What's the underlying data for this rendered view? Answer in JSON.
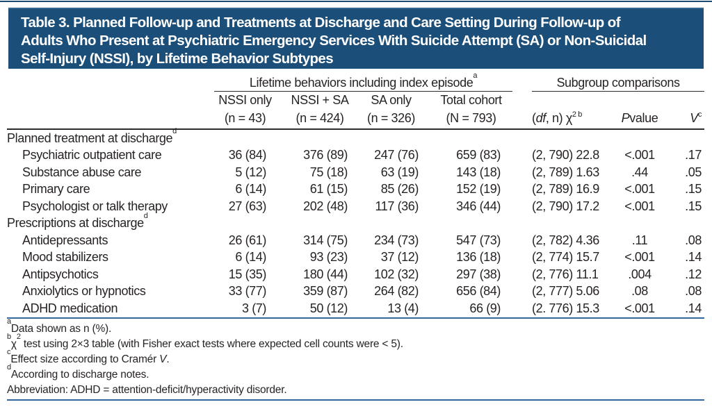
{
  "colors": {
    "title_bar": "#1b4f79",
    "title_text": "#ffffff",
    "body_text": "#272324",
    "dark_rule": "#2b2b2b",
    "blue_rule": "#31679b"
  },
  "title": {
    "lines": [
      "Table 3. Planned Follow-up and Treatments at Discharge and Care Setting During Follow-up of",
      "Adults Who Present at Psychiatric Emergency Services With Suicide Attempt (SA) or Non-Suicidal",
      "Self-Injury (NSSI), by Lifetime Behavior Subtypes"
    ]
  },
  "header": {
    "lifetime_spanner": {
      "text": "Lifetime behaviors including index episode",
      "sup": "a"
    },
    "subgroup_spanner": "Subgroup comparisons",
    "columns": [
      {
        "line1": "NSSI only",
        "line2": "(n = 43)"
      },
      {
        "line1": "NSSI + SA",
        "line2": "(n = 424)"
      },
      {
        "line1": "SA only",
        "line2": "(n = 326)"
      },
      {
        "line1": "Total cohort",
        "line2": "(N = 793)"
      }
    ],
    "chi_header": {
      "open": "(",
      "df": "df",
      "rest": ", n) χ",
      "sup": "2 b"
    },
    "p_header": {
      "italic": "P",
      "rest": " value"
    },
    "v_header": {
      "italic": "V",
      "sup": "c"
    }
  },
  "rows": [
    {
      "type": "section",
      "label": "Planned treatment at discharge",
      "sup": "d"
    },
    {
      "type": "item",
      "label": "Psychiatric outpatient care",
      "values": [
        "36 (84)",
        "376 (89)",
        "247 (76)",
        "659 (83)",
        "(2, 790) 22.8",
        "<.001",
        ".17"
      ]
    },
    {
      "type": "item",
      "label": "Substance abuse care",
      "values": [
        "5 (12)",
        "75 (18)",
        "63 (19)",
        "143 (18)",
        "(2, 789) 1.63",
        ".44",
        ".05"
      ]
    },
    {
      "type": "item",
      "label": "Primary care",
      "values": [
        "6 (14)",
        "61 (15)",
        "85 (26)",
        "152 (19)",
        "(2, 789) 16.9",
        "<.001",
        ".15"
      ]
    },
    {
      "type": "item",
      "label": "Psychologist or talk therapy",
      "values": [
        "27 (63)",
        "202 (48)",
        "117 (36)",
        "346 (44)",
        "(2, 790) 17.2",
        "<.001",
        ".15"
      ]
    },
    {
      "type": "section",
      "label": "Prescriptions at discharge",
      "sup": "d"
    },
    {
      "type": "item",
      "label": "Antidepressants",
      "values": [
        "26 (61)",
        "314 (75)",
        "234 (73)",
        "547 (73)",
        "(2, 782) 4.36",
        ".11",
        ".08"
      ]
    },
    {
      "type": "item",
      "label": "Mood stabilizers",
      "values": [
        "6 (14)",
        "93 (23)",
        "37 (12)",
        "136 (18)",
        "(2, 774) 15.7",
        "<.001",
        ".14"
      ]
    },
    {
      "type": "item",
      "label": "Antipsychotics",
      "values": [
        "15 (35)",
        "180 (44)",
        "102 (32)",
        "297 (38)",
        "(2, 776) 11.1",
        ".004",
        ".12"
      ]
    },
    {
      "type": "item",
      "label": "Anxiolytics or hypnotics",
      "values": [
        "33 (77)",
        "359 (87)",
        "264 (82)",
        "656 (84)",
        "(2, 777) 5.06",
        ".08",
        ".08"
      ]
    },
    {
      "type": "item",
      "label": "ADHD medication",
      "values": [
        "3 (7)",
        "50 (12)",
        "13 (4)",
        "66 (9)",
        "(2. 776) 15.3",
        "<.001",
        ".14"
      ]
    }
  ],
  "footnotes": [
    {
      "marker": "a",
      "segments": [
        {
          "text": "Data shown as n (%)."
        }
      ]
    },
    {
      "marker": "b",
      "segments": [
        {
          "text": "χ"
        },
        {
          "text": "2",
          "sup": true
        },
        {
          "text": " test using 2×3 table (with Fisher exact tests where expected cell counts were < 5)."
        }
      ]
    },
    {
      "marker": "c",
      "segments": [
        {
          "text": "Effect size according to Cramér "
        },
        {
          "text": "V",
          "italic": true
        },
        {
          "text": "."
        }
      ]
    },
    {
      "marker": "d",
      "segments": [
        {
          "text": "According to discharge notes."
        }
      ]
    },
    {
      "marker": "",
      "segments": [
        {
          "text": "Abbreviation: ADHD = attention-deficit/hyperactivity disorder."
        }
      ]
    }
  ]
}
